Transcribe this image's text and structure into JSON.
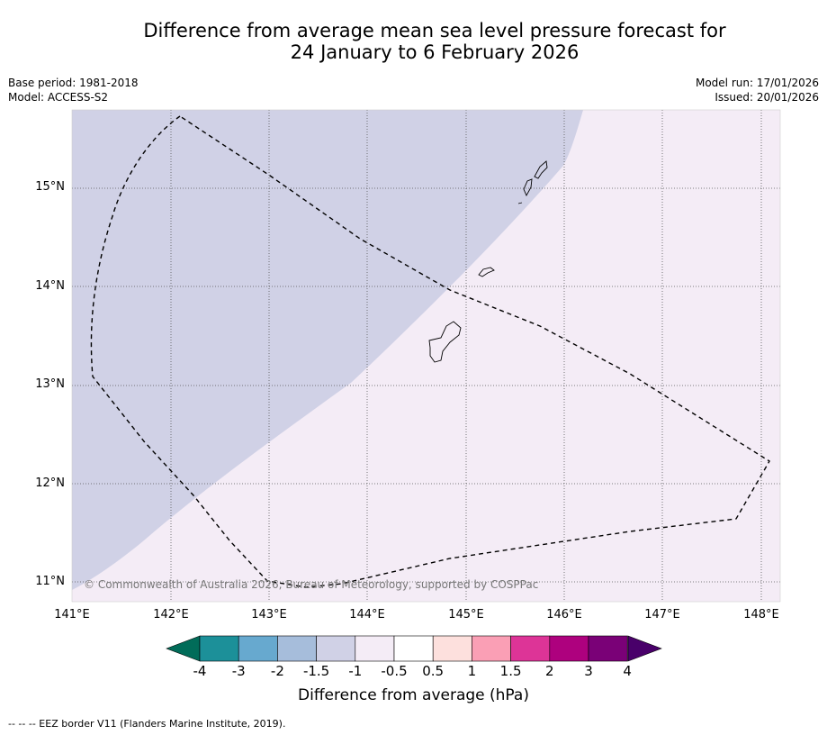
{
  "title": {
    "line1": "Difference from average mean sea level pressure forecast for",
    "line2": "24 January to 6 February 2026"
  },
  "meta_left": {
    "base_period": "Base period: 1981-2018",
    "model": "Model: ACCESS-S2"
  },
  "meta_right": {
    "model_run": "Model run: 17/01/2026",
    "issued": "Issued: 20/01/2026"
  },
  "map": {
    "lat_labels": [
      "15°N",
      "14°N",
      "13°N",
      "12°N",
      "11°N"
    ],
    "lon_labels": [
      "141°E",
      "142°E",
      "143°E",
      "144°E",
      "145°E",
      "146°E",
      "147°E",
      "148°E"
    ],
    "copyright": "© Commonwealth of Australia 2026, Bureau of Meteorology, supported by COSPPac",
    "region_colors": {
      "minus_1_5_to_minus_1": "#d0d1e6",
      "minus_1_to_minus_0_5": "#f4ecf6"
    }
  },
  "colorbar": {
    "labels": [
      "-4",
      "-3",
      "-2",
      "-1.5",
      "-1",
      "-0.5",
      "0.5",
      "1",
      "1.5",
      "2",
      "3",
      "4"
    ],
    "colors": [
      "#016c59",
      "#1c9099",
      "#67a9cf",
      "#a6bddb",
      "#d0d1e6",
      "#f4ecf6",
      "#ffffff",
      "#fde0dd",
      "#fa9fb5",
      "#dd3497",
      "#ae017e",
      "#7a0177",
      "#49006a"
    ],
    "title": "Difference from average (hPa)"
  },
  "footer": {
    "legend": "--  --  -- EEZ border V11 (Flanders Marine Institute, 2019)."
  }
}
